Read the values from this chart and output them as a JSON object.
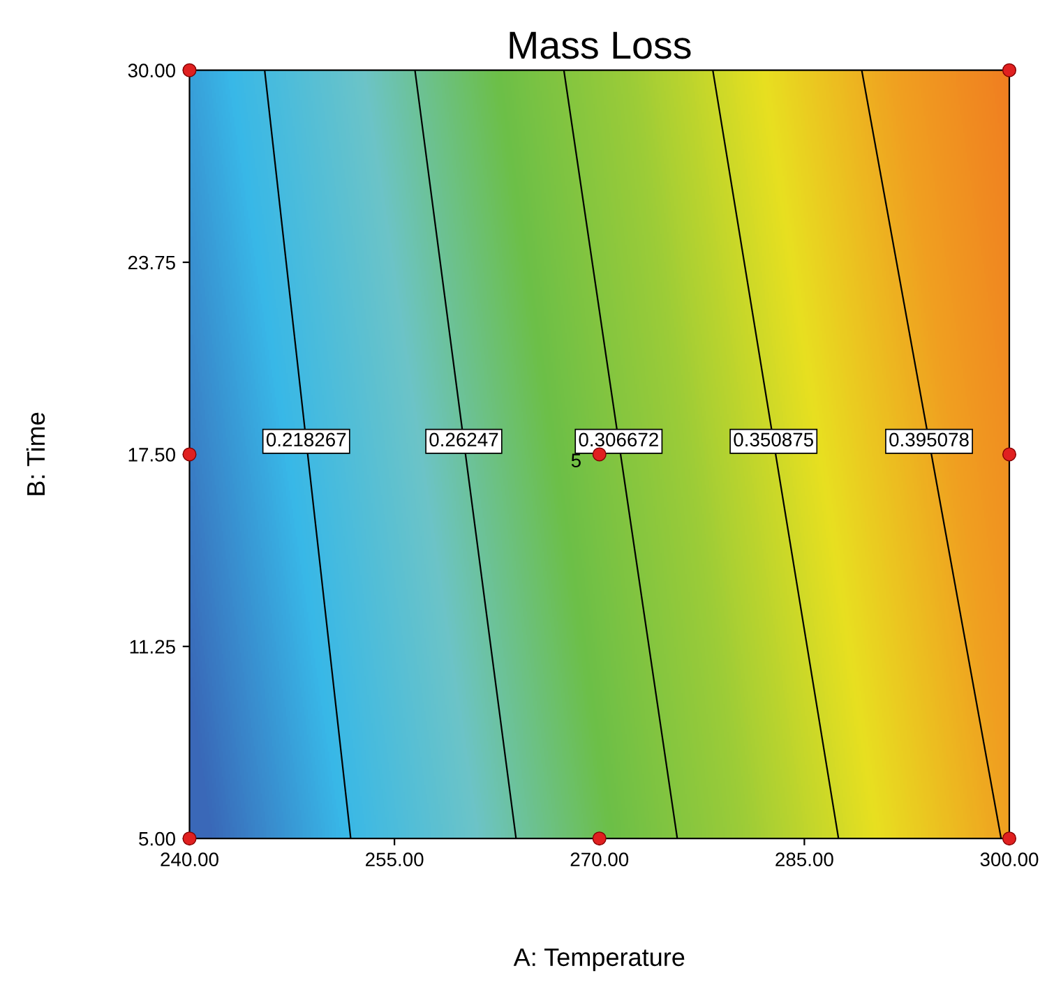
{
  "chart_data": {
    "type": "line",
    "title": "Mass Loss",
    "xlabel": "A: Temperature",
    "ylabel": "B: Time",
    "xlim": [
      240,
      300
    ],
    "ylim": [
      5,
      30
    ],
    "xticks": [
      {
        "value": 240,
        "label": "240.00"
      },
      {
        "value": 255,
        "label": "255.00"
      },
      {
        "value": 270,
        "label": "270.00"
      },
      {
        "value": 285,
        "label": "285.00"
      },
      {
        "value": 300,
        "label": "300.00"
      }
    ],
    "yticks": [
      {
        "value": 5,
        "label": "5.00"
      },
      {
        "value": 11.25,
        "label": "11.25"
      },
      {
        "value": 17.5,
        "label": "17.50"
      },
      {
        "value": 23.75,
        "label": "23.75"
      },
      {
        "value": 30,
        "label": "30.00"
      }
    ],
    "grid": false,
    "legend": false,
    "series": [
      {
        "name": "0.218267",
        "color": "#000000",
        "x": [
          245.5,
          251.8
        ],
        "values": [
          30,
          5
        ]
      },
      {
        "name": "0.26247",
        "color": "#000000",
        "x": [
          256.5,
          263.9
        ],
        "values": [
          30,
          5
        ]
      },
      {
        "name": "0.306672",
        "color": "#000000",
        "x": [
          267.4,
          275.7
        ],
        "values": [
          30,
          5
        ]
      },
      {
        "name": "0.350875",
        "color": "#000000",
        "x": [
          278.3,
          287.5
        ],
        "values": [
          30,
          5
        ]
      },
      {
        "name": "0.395078",
        "color": "#000000",
        "x": [
          289.2,
          299.4
        ],
        "values": [
          30,
          5
        ]
      },
      {
        "color": "#e02020",
        "type": "scatter",
        "marker": "circle",
        "x": [
          240,
          240,
          240,
          270,
          270,
          300,
          300,
          300
        ],
        "values": [
          30,
          17.5,
          5,
          17.5,
          5,
          30,
          17.5,
          5
        ]
      }
    ],
    "annotations": [
      {
        "text": "5",
        "x": 270,
        "y": 17.5
      }
    ]
  }
}
